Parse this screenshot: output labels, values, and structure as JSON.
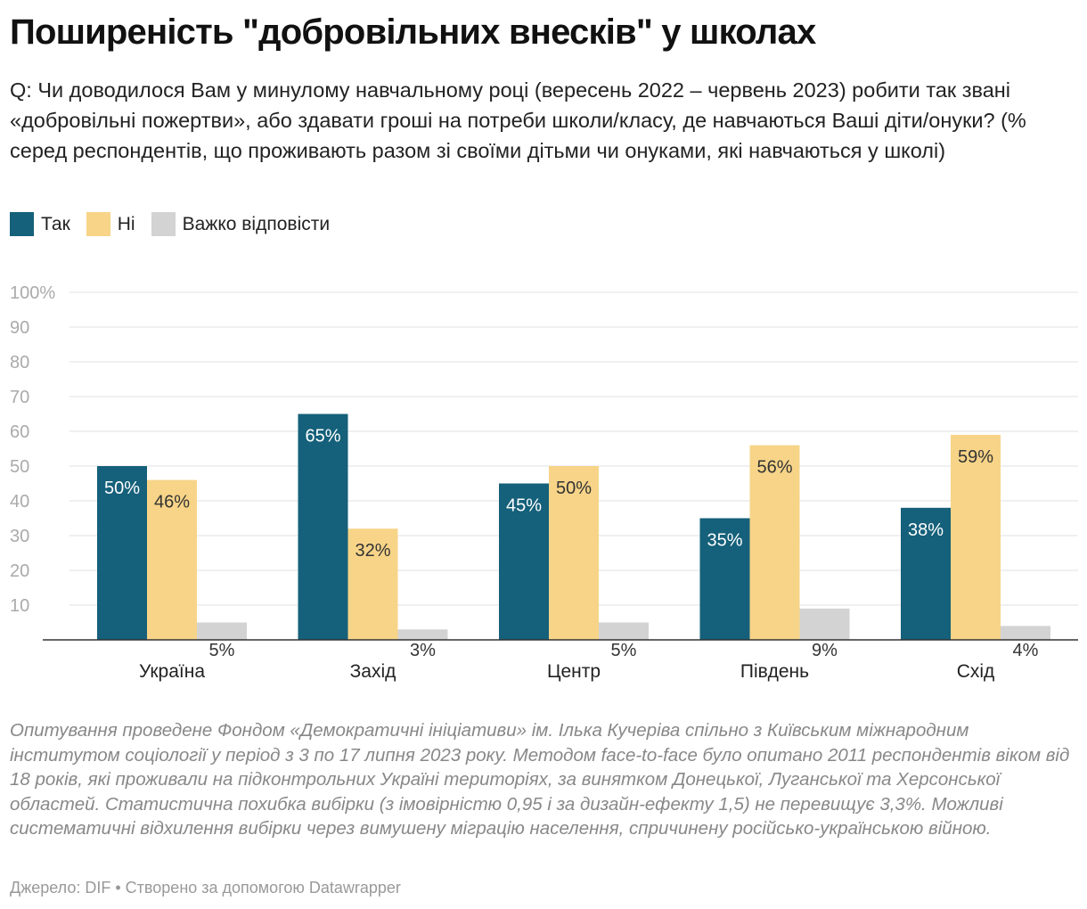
{
  "title": "Поширеність \"добровільних внесків\" у школах",
  "subtitle": "Q: Чи доводилося Вам у минулому навчальному році (вересень 2022 – червень 2023) робити так звані «добровільні пожертви», або здавати гроші на потреби школи/класу, де навчаються Ваші діти/онуки? (% серед респондентів, що проживають разом зі своїми дітьми чи онуками, які навчаються у школі)",
  "notes": "Опитування проведене Фондом «Демократичні ініціативи» ім. Ілька Кучеріва спільно з Київським міжнародним інститутом соціології у період з 3 по 17 липня 2023 року. Методом face-to-face було опитано 2011 респондентів віком від 18 років, які проживали на підконтрольних Україні територіях, за винятком Донецької, Луганської та Херсонської областей. Статистична похибка вибірки (з імовірністю 0,95 і за дизайн-ефекту 1,5) не перевищує 3,3%. Можливі систематичні відхилення вибірки через вимушену міграцію населення, спричинену російсько-українською війною.",
  "source": "Джерело: DIF • Створено за допомогою Datawrapper",
  "chart_data": {
    "type": "bar",
    "categories": [
      "Україна",
      "Захід",
      "Центр",
      "Південь",
      "Схід"
    ],
    "series": [
      {
        "name": "Так",
        "color": "#15607a",
        "values": [
          50,
          65,
          45,
          35,
          38
        ],
        "labels": [
          "50%",
          "65%",
          "45%",
          "35%",
          "38%"
        ]
      },
      {
        "name": "Ні",
        "color": "#f7d488",
        "values": [
          46,
          32,
          50,
          56,
          59
        ],
        "labels": [
          "46%",
          "32%",
          "50%",
          "56%",
          "59%"
        ]
      },
      {
        "name": "Важко відповісти",
        "color": "#d3d3d3",
        "values": [
          5,
          3,
          5,
          9,
          4
        ],
        "labels": [
          "5%",
          "3%",
          "5%",
          "9%",
          "4%"
        ]
      }
    ],
    "y_ticks": [
      "10",
      "20",
      "30",
      "40",
      "50",
      "60",
      "70",
      "80",
      "90",
      "100%"
    ],
    "ylim": [
      0,
      100
    ],
    "grid": true,
    "legend_position": "top-left"
  }
}
